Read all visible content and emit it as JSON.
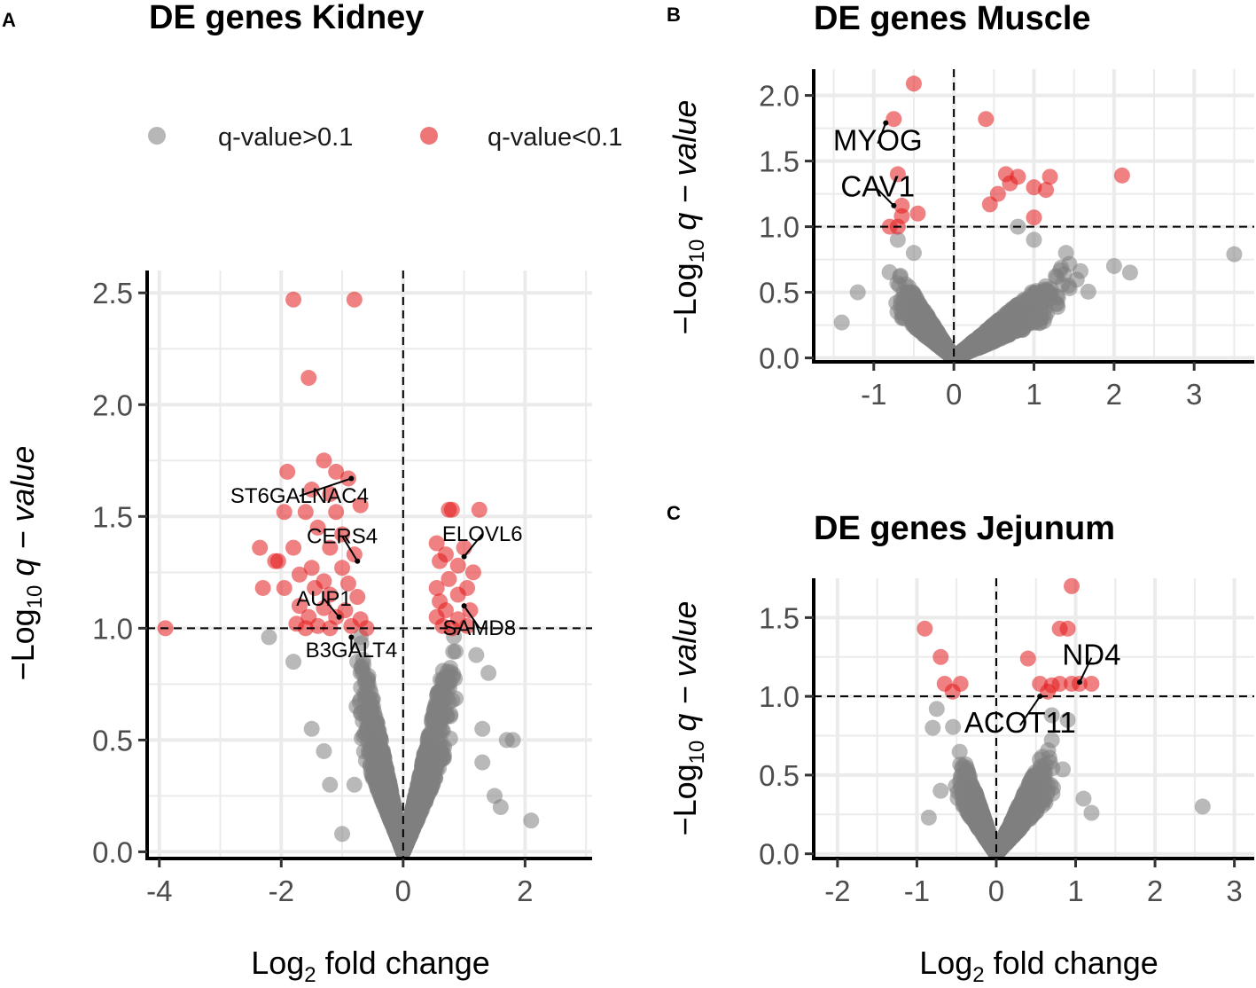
{
  "legend": {
    "items": [
      {
        "label": "q-value>0.1",
        "color": "#999999"
      },
      {
        "label": "q-value<0.1",
        "color": "#e31a1c"
      }
    ]
  },
  "colors": {
    "ns": "#7f7f7f",
    "sig": "#e31a1c",
    "grid": "#ebebeb",
    "axis": "#000000"
  },
  "chart_data": [
    {
      "panel": "A",
      "type": "scatter",
      "title": "DE genes Kidney",
      "xlabel_main": "Log",
      "xlabel_sub": "2",
      "xlabel_rest": " fold change",
      "ylabel_pre": "−Log",
      "ylabel_sub": "10",
      "ylabel_rest": " q − value",
      "xlim": [
        -4.2,
        3.1
      ],
      "ylim": [
        -0.03,
        2.6
      ],
      "xticks": [
        -4,
        -2,
        0,
        2
      ],
      "xtick_labels": [
        "-4",
        "-2",
        "0",
        "2"
      ],
      "yticks": [
        0,
        0.5,
        1,
        1.5,
        2,
        2.5
      ],
      "ytick_labels": [
        "0.0",
        "0.5",
        "1.0",
        "1.5",
        "2.0",
        "2.5"
      ],
      "vline": 0,
      "hline": 1.0,
      "nonsig_cloud": {
        "count": 2600,
        "seed": 11,
        "left_x": -1.0,
        "right_x": 1.1,
        "left_slope": 1.2,
        "right_slope": 1.1,
        "max_y": 0.98
      },
      "nonsig_extra": [
        [
          2.1,
          0.14
        ],
        [
          1.7,
          0.5
        ],
        [
          1.8,
          0.5
        ],
        [
          1.4,
          0.8
        ],
        [
          1.3,
          0.4
        ],
        [
          -1.0,
          0.08
        ],
        [
          -0.8,
          0.3
        ],
        [
          -1.2,
          0.3
        ],
        [
          -2.2,
          0.96
        ],
        [
          -1.8,
          0.85
        ],
        [
          1.5,
          0.25
        ],
        [
          1.6,
          0.2
        ],
        [
          -1.5,
          0.55
        ],
        [
          -1.3,
          0.45
        ],
        [
          1.3,
          0.55
        ],
        [
          1.2,
          0.88
        ]
      ],
      "significant": [
        [
          -1.8,
          2.47
        ],
        [
          -0.8,
          2.47
        ],
        [
          -1.55,
          2.12
        ],
        [
          -1.3,
          1.75
        ],
        [
          -1.9,
          1.7
        ],
        [
          -1.1,
          1.7
        ],
        [
          -0.9,
          1.67
        ],
        [
          -1.5,
          1.62
        ],
        [
          -1.2,
          1.6
        ],
        [
          -0.7,
          1.55
        ],
        [
          -1.95,
          1.52
        ],
        [
          -1.6,
          1.52
        ],
        [
          -1.1,
          1.52
        ],
        [
          -1.4,
          1.45
        ],
        [
          -1.0,
          1.42
        ],
        [
          -2.35,
          1.36
        ],
        [
          -1.8,
          1.36
        ],
        [
          -1.2,
          1.36
        ],
        [
          -0.8,
          1.33
        ],
        [
          -2.05,
          1.3
        ],
        [
          -2.1,
          1.3
        ],
        [
          -1.5,
          1.27
        ],
        [
          -1.0,
          1.27
        ],
        [
          -1.7,
          1.24
        ],
        [
          -1.3,
          1.21
        ],
        [
          -0.9,
          1.2
        ],
        [
          -2.3,
          1.18
        ],
        [
          -1.95,
          1.18
        ],
        [
          -1.45,
          1.18
        ],
        [
          -1.2,
          1.15
        ],
        [
          -0.75,
          1.14
        ],
        [
          -1.7,
          1.1
        ],
        [
          -1.3,
          1.09
        ],
        [
          -0.95,
          1.08
        ],
        [
          -1.55,
          1.05
        ],
        [
          -1.1,
          1.05
        ],
        [
          -0.7,
          1.04
        ],
        [
          -1.75,
          1.02
        ],
        [
          -1.4,
          1.01
        ],
        [
          -0.85,
          1.01
        ],
        [
          -1.6,
          1.0
        ],
        [
          -1.2,
          1.0
        ],
        [
          -0.6,
          1.0
        ],
        [
          -3.9,
          1.0
        ],
        [
          0.75,
          1.53
        ],
        [
          0.8,
          1.53
        ],
        [
          1.25,
          1.53
        ],
        [
          0.55,
          1.38
        ],
        [
          1.0,
          1.36
        ],
        [
          0.7,
          1.33
        ],
        [
          0.6,
          1.3
        ],
        [
          0.9,
          1.28
        ],
        [
          1.15,
          1.25
        ],
        [
          0.75,
          1.22
        ],
        [
          0.55,
          1.18
        ],
        [
          1.05,
          1.18
        ],
        [
          0.9,
          1.15
        ],
        [
          0.6,
          1.12
        ],
        [
          0.7,
          1.08
        ],
        [
          1.1,
          1.08
        ],
        [
          0.55,
          1.05
        ],
        [
          0.9,
          1.04
        ],
        [
          0.65,
          1.01
        ],
        [
          1.05,
          1.01
        ],
        [
          0.8,
          1.0
        ]
      ],
      "labels": [
        {
          "text": "ST6GALNAC4",
          "x": -0.85,
          "y": 1.67,
          "tx": -1.7,
          "ty": 1.56
        },
        {
          "text": "CERS4",
          "x": -0.75,
          "y": 1.3,
          "tx": -1.0,
          "ty": 1.38
        },
        {
          "text": "ELOVL6",
          "x": 1.0,
          "y": 1.32,
          "tx": 1.3,
          "ty": 1.39
        },
        {
          "text": "AUP1",
          "x": -1.05,
          "y": 1.05,
          "tx": -1.3,
          "ty": 1.1
        },
        {
          "text": "SAMD8",
          "x": 1.0,
          "y": 1.1,
          "tx": 1.25,
          "ty": 0.97
        },
        {
          "text": "B3GALT4",
          "x": -0.85,
          "y": 0.96,
          "tx": -0.85,
          "ty": 0.87
        }
      ]
    },
    {
      "panel": "B",
      "type": "scatter",
      "title": "DE genes Muscle",
      "ylabel_pre": "−Log",
      "ylabel_sub": "10",
      "ylabel_rest": " q − value",
      "xlim": [
        -1.75,
        3.75
      ],
      "ylim": [
        -0.03,
        2.2
      ],
      "xticks": [
        -1,
        0,
        1,
        2,
        3
      ],
      "xtick_labels": [
        "-1",
        "0",
        "1",
        "2",
        "3"
      ],
      "yticks": [
        0,
        0.5,
        1,
        1.5,
        2
      ],
      "ytick_labels": [
        "0.0",
        "0.5",
        "1.0",
        "1.5",
        "2.0"
      ],
      "vline": 0,
      "hline": 1.0,
      "nonsig_cloud": {
        "count": 2200,
        "seed": 23,
        "left_x": -1.0,
        "right_x": 2.0,
        "left_slope": 0.85,
        "right_slope": 0.45,
        "max_y": 0.92
      },
      "nonsig_extra": [
        [
          3.5,
          0.79
        ],
        [
          -1.4,
          0.27
        ],
        [
          -1.2,
          0.5
        ],
        [
          -0.5,
          0.8
        ],
        [
          0.8,
          1.0
        ],
        [
          1.0,
          0.9
        ],
        [
          2.2,
          0.65
        ],
        [
          2.0,
          0.7
        ],
        [
          -0.7,
          0.9
        ],
        [
          1.4,
          0.8
        ]
      ],
      "significant": [
        [
          -0.5,
          2.09
        ],
        [
          -0.75,
          1.82
        ],
        [
          0.4,
          1.82
        ],
        [
          -0.7,
          1.4
        ],
        [
          0.65,
          1.4
        ],
        [
          0.8,
          1.38
        ],
        [
          1.2,
          1.38
        ],
        [
          2.1,
          1.39
        ],
        [
          0.7,
          1.33
        ],
        [
          1.0,
          1.3
        ],
        [
          1.15,
          1.28
        ],
        [
          0.55,
          1.25
        ],
        [
          -0.65,
          1.16
        ],
        [
          0.45,
          1.17
        ],
        [
          -0.45,
          1.1
        ],
        [
          -0.65,
          1.08
        ],
        [
          1.0,
          1.07
        ],
        [
          -0.7,
          1.0
        ],
        [
          -0.8,
          1.0
        ]
      ],
      "labels": [
        {
          "text": "MYOG",
          "x": -0.85,
          "y": 1.79,
          "tx": -0.95,
          "ty": 1.58
        },
        {
          "text": "CAV1",
          "x": -0.75,
          "y": 1.16,
          "tx": -0.95,
          "ty": 1.23
        }
      ]
    },
    {
      "panel": "C",
      "type": "scatter",
      "title": "DE genes Jejunum",
      "xlabel_main": "Log",
      "xlabel_sub": "2",
      "xlabel_rest": " fold change",
      "ylabel_pre": "−Log",
      "ylabel_sub": "10",
      "ylabel_rest": " q − value",
      "xlim": [
        -2.3,
        3.25
      ],
      "ylim": [
        -0.03,
        1.75
      ],
      "xticks": [
        -2,
        -1,
        0,
        1,
        2,
        3
      ],
      "xtick_labels": [
        "-2",
        "-1",
        "0",
        "1",
        "2",
        "3"
      ],
      "yticks": [
        0,
        0.5,
        1,
        1.5
      ],
      "ytick_labels": [
        "0.0",
        "0.5",
        "1.0",
        "1.5"
      ],
      "vline": 0,
      "hline": 1.0,
      "nonsig_cloud": {
        "count": 1800,
        "seed": 37,
        "left_x": -0.7,
        "right_x": 1.0,
        "left_slope": 1.3,
        "right_slope": 0.95,
        "max_y": 0.94
      },
      "nonsig_extra": [
        [
          2.6,
          0.3
        ],
        [
          -0.85,
          0.23
        ],
        [
          -0.7,
          0.4
        ],
        [
          -0.8,
          0.8
        ],
        [
          -0.75,
          0.92
        ],
        [
          1.2,
          0.26
        ],
        [
          1.1,
          0.35
        ],
        [
          0.9,
          0.85
        ],
        [
          0.7,
          0.88
        ]
      ],
      "significant": [
        [
          0.95,
          1.7
        ],
        [
          -0.9,
          1.43
        ],
        [
          0.8,
          1.43
        ],
        [
          0.9,
          1.43
        ],
        [
          -0.7,
          1.25
        ],
        [
          0.4,
          1.24
        ],
        [
          -0.65,
          1.08
        ],
        [
          -0.45,
          1.08
        ],
        [
          0.55,
          1.08
        ],
        [
          0.8,
          1.08
        ],
        [
          0.95,
          1.08
        ],
        [
          1.05,
          1.08
        ],
        [
          1.2,
          1.08
        ],
        [
          -0.55,
          1.03
        ],
        [
          0.65,
          1.03
        ],
        [
          0.7,
          1.07
        ]
      ],
      "labels": [
        {
          "text": "ND4",
          "x": 1.05,
          "y": 1.09,
          "tx": 1.2,
          "ty": 1.2
        },
        {
          "text": "ACOT11",
          "x": 0.55,
          "y": 1.0,
          "tx": 0.3,
          "ty": 0.77
        }
      ]
    }
  ]
}
